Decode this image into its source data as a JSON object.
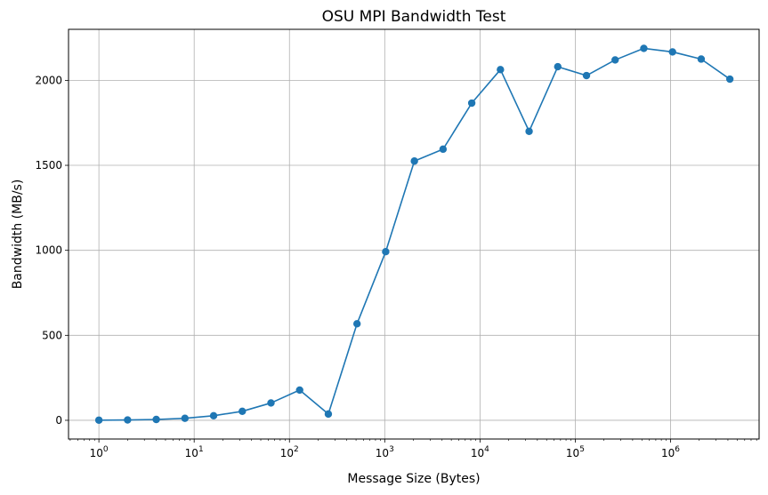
{
  "chart_data": {
    "type": "line",
    "title": "OSU MPI Bandwidth Test",
    "xlabel": "Message Size (Bytes)",
    "ylabel": "Bandwidth (MB/s)",
    "x_scale": "log",
    "xlim": [
      0.48,
      8500000
    ],
    "ylim": [
      -110,
      2300
    ],
    "grid": true,
    "line_color": "#1f77b4",
    "x_ticks": [
      {
        "base": "10",
        "exp": "0",
        "value": 1
      },
      {
        "base": "10",
        "exp": "1",
        "value": 10
      },
      {
        "base": "10",
        "exp": "2",
        "value": 100
      },
      {
        "base": "10",
        "exp": "3",
        "value": 1000
      },
      {
        "base": "10",
        "exp": "4",
        "value": 10000
      },
      {
        "base": "10",
        "exp": "5",
        "value": 100000
      },
      {
        "base": "10",
        "exp": "6",
        "value": 1000000
      }
    ],
    "y_ticks": [
      0,
      500,
      1000,
      1500,
      2000
    ],
    "series": [
      {
        "x": [
          1,
          2,
          4,
          8,
          16,
          32,
          64,
          128,
          256,
          512,
          1024,
          2048,
          4096,
          8192,
          16384,
          32768,
          65536,
          131072,
          262144,
          524288,
          1048576,
          2097152,
          4194304
        ],
        "values": [
          1,
          2,
          5,
          12,
          27,
          53,
          102,
          178,
          37,
          568,
          992,
          1525,
          1595,
          1866,
          2063,
          1700,
          2080,
          2028,
          2120,
          2188,
          2167,
          2125,
          2007
        ]
      }
    ]
  }
}
